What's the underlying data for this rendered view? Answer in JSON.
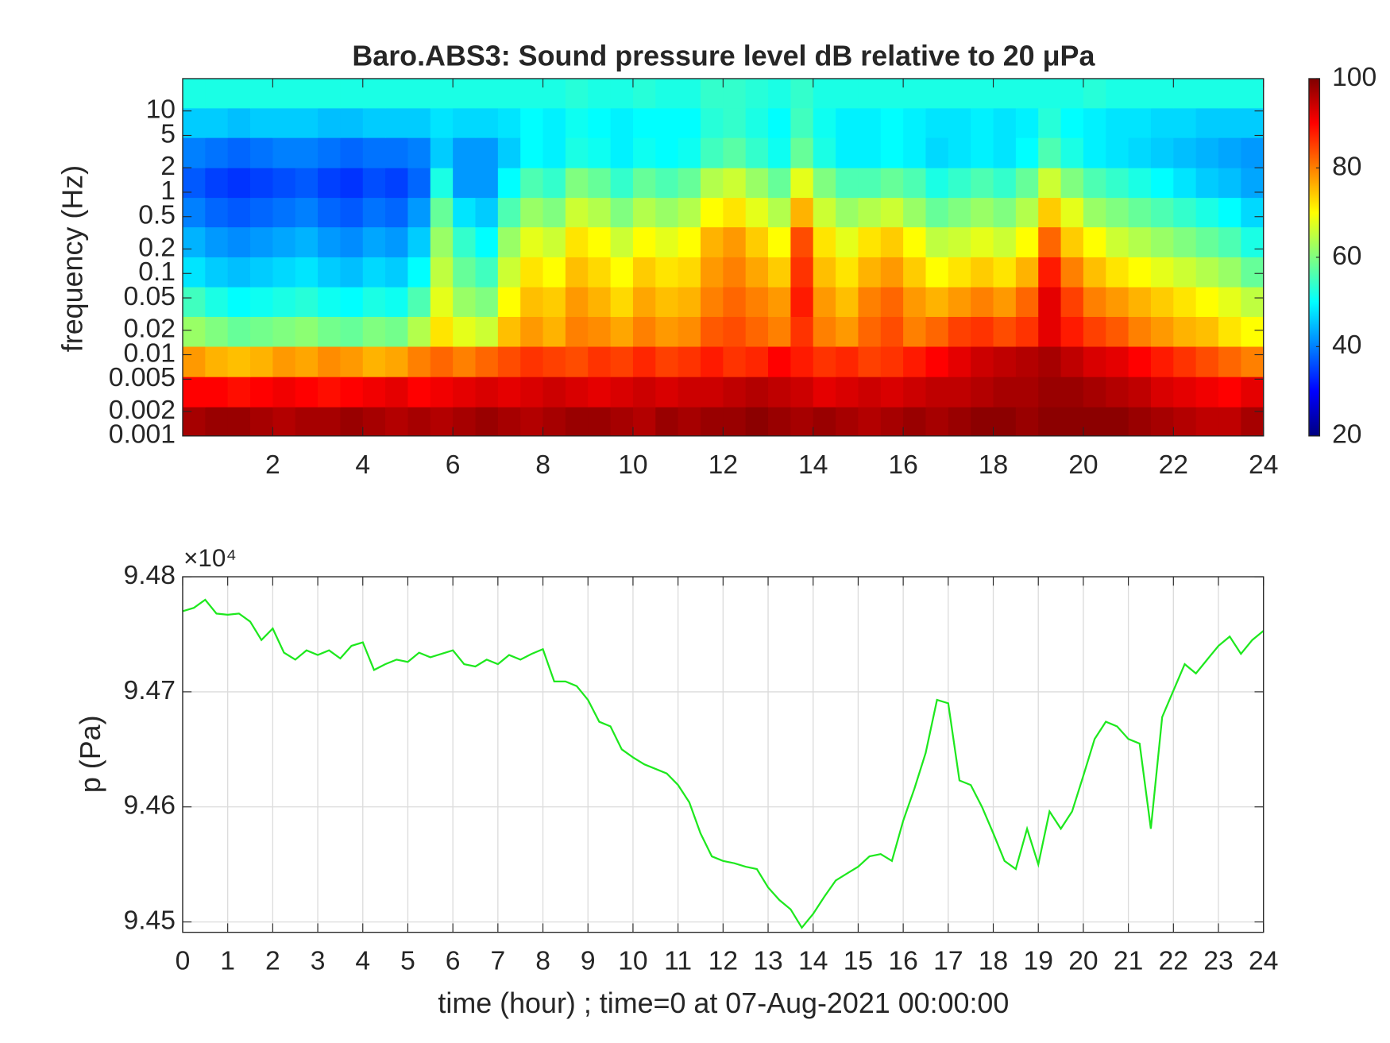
{
  "chart_data": [
    {
      "type": "heatmap",
      "title": "Baro.ABS3: Sound pressure level dB relative to 20 μPa",
      "y_label": "frequency (Hz)",
      "colormap": "jet",
      "x": [
        0.25,
        0.75,
        1.25,
        1.75,
        2.25,
        2.75,
        3.25,
        3.75,
        4.25,
        4.75,
        5.25,
        5.75,
        6.25,
        6.75,
        7.25,
        7.75,
        8.25,
        8.75,
        9.25,
        9.75,
        10.25,
        10.75,
        11.25,
        11.75,
        12.25,
        12.75,
        13.25,
        13.75,
        14.25,
        14.75,
        15.25,
        15.75,
        16.25,
        16.75,
        17.25,
        17.75,
        18.25,
        18.75,
        19.25,
        19.75,
        20.25,
        20.75,
        21.25,
        21.75,
        22.25,
        22.75,
        23.25,
        23.75
      ],
      "y": [
        0.0015,
        0.0035,
        0.0083,
        0.0195,
        0.045,
        0.105,
        0.245,
        0.575,
        1.3,
        3.1,
        7.2,
        16.6
      ],
      "values": [
        [
          97,
          98,
          98,
          97,
          96,
          97,
          97,
          98,
          97,
          96,
          97,
          96,
          97,
          98,
          97,
          96,
          97,
          98,
          98,
          97,
          96,
          98,
          97,
          98,
          98,
          99,
          98,
          97,
          98,
          97,
          96,
          97,
          98,
          97,
          98,
          99,
          99,
          98,
          99,
          99,
          99,
          99,
          98,
          97,
          96,
          95,
          95,
          97
        ],
        [
          90,
          90,
          89,
          90,
          91,
          90,
          89,
          90,
          91,
          92,
          90,
          91,
          92,
          93,
          92,
          93,
          94,
          93,
          92,
          93,
          94,
          93,
          94,
          94,
          95,
          96,
          95,
          94,
          92,
          93,
          94,
          93,
          94,
          95,
          95,
          96,
          97,
          97,
          98,
          98,
          97,
          96,
          95,
          93,
          92,
          91,
          90,
          92
        ],
        [
          78,
          76,
          75,
          76,
          78,
          77,
          79,
          78,
          76,
          77,
          80,
          82,
          80,
          82,
          84,
          86,
          85,
          84,
          86,
          85,
          87,
          85,
          86,
          88,
          86,
          87,
          90,
          88,
          86,
          87,
          85,
          86,
          88,
          90,
          92,
          94,
          95,
          96,
          97,
          95,
          93,
          92,
          90,
          88,
          86,
          84,
          82,
          80
        ],
        [
          62,
          60,
          58,
          59,
          60,
          61,
          59,
          58,
          60,
          59,
          64,
          72,
          68,
          66,
          75,
          78,
          76,
          80,
          79,
          77,
          80,
          78,
          79,
          83,
          84,
          82,
          80,
          86,
          80,
          78,
          82,
          84,
          80,
          82,
          85,
          86,
          84,
          86,
          92,
          88,
          85,
          83,
          80,
          78,
          76,
          75,
          72,
          70
        ],
        [
          55,
          52,
          50,
          51,
          52,
          53,
          51,
          50,
          52,
          51,
          56,
          68,
          62,
          60,
          70,
          75,
          74,
          78,
          76,
          73,
          77,
          75,
          76,
          80,
          82,
          80,
          78,
          88,
          78,
          75,
          80,
          82,
          78,
          76,
          78,
          80,
          78,
          82,
          92,
          85,
          80,
          78,
          76,
          74,
          72,
          70,
          68,
          65
        ],
        [
          48,
          46,
          45,
          46,
          47,
          48,
          46,
          45,
          47,
          46,
          50,
          65,
          58,
          55,
          66,
          72,
          70,
          75,
          73,
          70,
          74,
          72,
          73,
          78,
          80,
          77,
          74,
          86,
          75,
          72,
          76,
          78,
          74,
          70,
          72,
          74,
          72,
          76,
          88,
          80,
          75,
          72,
          70,
          68,
          66,
          64,
          62,
          58
        ],
        [
          44,
          42,
          41,
          42,
          43,
          44,
          42,
          41,
          43,
          42,
          46,
          62,
          54,
          50,
          62,
          68,
          66,
          72,
          70,
          66,
          70,
          68,
          70,
          76,
          78,
          74,
          70,
          84,
          72,
          68,
          72,
          74,
          70,
          65,
          66,
          68,
          66,
          70,
          82,
          74,
          70,
          66,
          64,
          62,
          60,
          58,
          56,
          52
        ],
        [
          40,
          38,
          37,
          38,
          39,
          40,
          38,
          37,
          39,
          38,
          42,
          58,
          48,
          46,
          56,
          62,
          60,
          66,
          64,
          60,
          64,
          62,
          64,
          70,
          72,
          68,
          64,
          76,
          66,
          62,
          64,
          66,
          62,
          58,
          60,
          62,
          60,
          64,
          74,
          68,
          62,
          60,
          58,
          56,
          54,
          52,
          50,
          47
        ],
        [
          37,
          35,
          34,
          35,
          36,
          37,
          35,
          34,
          36,
          35,
          38,
          52,
          42,
          42,
          50,
          56,
          54,
          60,
          58,
          54,
          58,
          56,
          58,
          64,
          66,
          62,
          58,
          68,
          60,
          56,
          56,
          58,
          56,
          52,
          54,
          56,
          54,
          58,
          66,
          60,
          56,
          54,
          52,
          50,
          48,
          46,
          45,
          43
        ],
        [
          40,
          39,
          38,
          39,
          40,
          40,
          39,
          38,
          39,
          39,
          40,
          46,
          42,
          42,
          46,
          50,
          49,
          52,
          51,
          49,
          51,
          50,
          51,
          55,
          57,
          54,
          51,
          58,
          52,
          49,
          49,
          50,
          49,
          47,
          48,
          49,
          48,
          50,
          56,
          52,
          49,
          48,
          47,
          46,
          45,
          44,
          43,
          42
        ],
        [
          46,
          46,
          45,
          46,
          46,
          46,
          45,
          45,
          46,
          46,
          46,
          48,
          47,
          47,
          48,
          50,
          49,
          51,
          50,
          49,
          50,
          50,
          50,
          53,
          54,
          52,
          50,
          55,
          51,
          49,
          49,
          50,
          49,
          48,
          48,
          49,
          48,
          49,
          53,
          50,
          49,
          48,
          48,
          47,
          47,
          46,
          46,
          46
        ],
        [
          52,
          52,
          52,
          52,
          52,
          52,
          52,
          52,
          52,
          52,
          52,
          52,
          52,
          52,
          52,
          52,
          52,
          53,
          52,
          52,
          53,
          52,
          52,
          54,
          54,
          53,
          52,
          54,
          52,
          52,
          52,
          52,
          52,
          52,
          52,
          52,
          52,
          52,
          52,
          52,
          53,
          52,
          52,
          52,
          52,
          52,
          52,
          52
        ]
      ],
      "xlim": [
        0,
        24
      ],
      "xticks": [
        2,
        4,
        6,
        8,
        10,
        12,
        14,
        16,
        18,
        20,
        22,
        24
      ],
      "ylim": [
        0.001,
        25
      ],
      "y_log_scale": true,
      "yticks": [
        0.001,
        0.002,
        0.005,
        0.01,
        0.02,
        0.05,
        0.1,
        0.2,
        0.5,
        1,
        2,
        5,
        10
      ],
      "clim": [
        20,
        100
      ],
      "cticks": [
        20,
        40,
        60,
        80,
        100
      ]
    },
    {
      "type": "line",
      "x_label": "time (hour) ; time=0 at 07-Aug-2021 00:00:00",
      "y_label": "p (Pa)",
      "y_multiplier": "×10⁴",
      "grid": true,
      "color": "#1ee81e",
      "x": [
        0,
        0.25,
        0.5,
        0.75,
        1,
        1.25,
        1.5,
        1.75,
        2,
        2.25,
        2.5,
        2.75,
        3,
        3.25,
        3.5,
        3.75,
        4,
        4.25,
        4.5,
        4.75,
        5,
        5.25,
        5.5,
        5.75,
        6,
        6.25,
        6.5,
        6.75,
        7,
        7.25,
        7.5,
        7.75,
        8,
        8.25,
        8.5,
        8.75,
        9,
        9.25,
        9.5,
        9.75,
        10,
        10.25,
        10.5,
        10.75,
        11,
        11.25,
        11.5,
        11.75,
        12,
        12.25,
        12.5,
        12.75,
        13,
        13.25,
        13.5,
        13.75,
        14,
        14.25,
        14.5,
        14.75,
        15,
        15.25,
        15.5,
        15.75,
        16,
        16.25,
        16.5,
        16.75,
        17,
        17.25,
        17.5,
        17.75,
        18,
        18.25,
        18.5,
        18.75,
        19,
        19.25,
        19.5,
        19.75,
        20,
        20.25,
        20.5,
        20.75,
        21,
        21.25,
        21.5,
        21.75,
        22,
        22.25,
        22.5,
        22.75,
        23,
        23.25,
        23.5,
        23.75,
        24
      ],
      "values": [
        94770,
        94773,
        94780,
        94768,
        94767,
        94768,
        94761,
        94745,
        94755,
        94734,
        94728,
        94736,
        94732,
        94736,
        94729,
        94740,
        94743,
        94719,
        94724,
        94728,
        94726,
        94734,
        94730,
        94733,
        94736,
        94724,
        94722,
        94728,
        94724,
        94732,
        94728,
        94733,
        94737,
        94709,
        94709,
        94705,
        94693,
        94674,
        94670,
        94650,
        94643,
        94637,
        94633,
        94629,
        94619,
        94604,
        94577,
        94557,
        94553,
        94551,
        94548,
        94546,
        94530,
        94519,
        94511,
        94495,
        94507,
        94522,
        94536,
        94542,
        94548,
        94557,
        94559,
        94553,
        94588,
        94616,
        94647,
        94693,
        94690,
        94623,
        94619,
        94600,
        94577,
        94553,
        94546,
        94581,
        94550,
        94596,
        94581,
        94596,
        94627,
        94659,
        94674,
        94670,
        94659,
        94655,
        94581,
        94678,
        94701,
        94724,
        94716,
        94728,
        94740,
        94748,
        94733,
        94745,
        94753
      ],
      "xlim": [
        0,
        24
      ],
      "xticks": [
        0,
        1,
        2,
        3,
        4,
        5,
        6,
        7,
        8,
        9,
        10,
        11,
        12,
        13,
        14,
        15,
        16,
        17,
        18,
        19,
        20,
        21,
        22,
        23,
        24
      ],
      "ylim": [
        94491,
        94800
      ],
      "yticks": [
        {
          "value": 94500,
          "label": "9.45"
        },
        {
          "value": 94600,
          "label": "9.46"
        },
        {
          "value": 94700,
          "label": "9.47"
        },
        {
          "value": 94800,
          "label": "9.48"
        }
      ]
    }
  ]
}
